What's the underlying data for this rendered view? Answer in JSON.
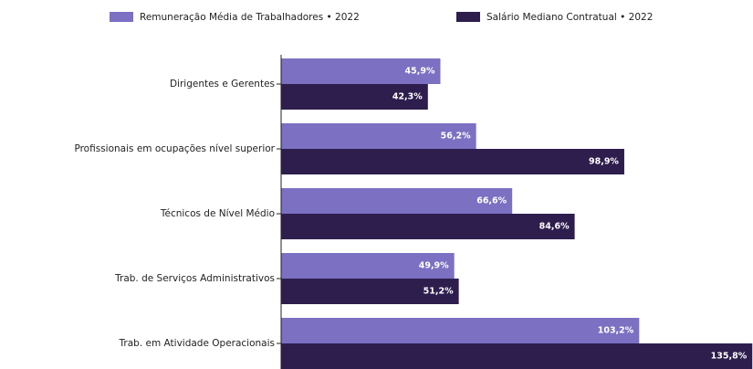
{
  "chart_data": {
    "type": "hbar",
    "categories": [
      "Dirigentes e Gerentes",
      "Profissionais em ocupações nível superior",
      "Técnicos de Nível Médio",
      "Trab. de Serviços Administrativos",
      "Trab. em Atividade Operacionais"
    ],
    "series": [
      {
        "name": "Remuneração Média de Trabalhadores • 2022",
        "color": "#7b70c2",
        "values": [
          45.9,
          56.2,
          66.6,
          49.9,
          103.2
        ],
        "value_labels": [
          "45,9%",
          "56,2%",
          "66,6%",
          "49,9%",
          "103,2%"
        ]
      },
      {
        "name": "Salário Mediano Contratual • 2022",
        "color": "#2d1e4e",
        "values": [
          42.3,
          98.9,
          84.6,
          51.2,
          135.8
        ],
        "value_labels": [
          "42,3%",
          "98,9%",
          "84,6%",
          "51,2%",
          "135,8%"
        ]
      }
    ],
    "xlim": [
      0,
      136
    ]
  }
}
